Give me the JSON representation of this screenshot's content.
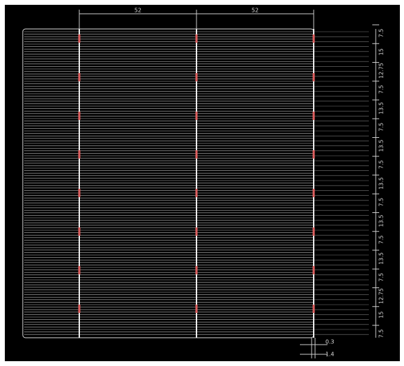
{
  "dimensions": {
    "top": [
      "52",
      "52"
    ],
    "right": [
      "7.5",
      "15",
      "12.75",
      "7.5",
      "13.5",
      "7.5",
      "13.5",
      "7.5",
      "13.5",
      "7.5",
      "13.5",
      "7.5",
      "13.5",
      "7.5",
      "12.75",
      "15",
      "7.5"
    ],
    "bottom": [
      "0.3",
      "1.4"
    ]
  }
}
